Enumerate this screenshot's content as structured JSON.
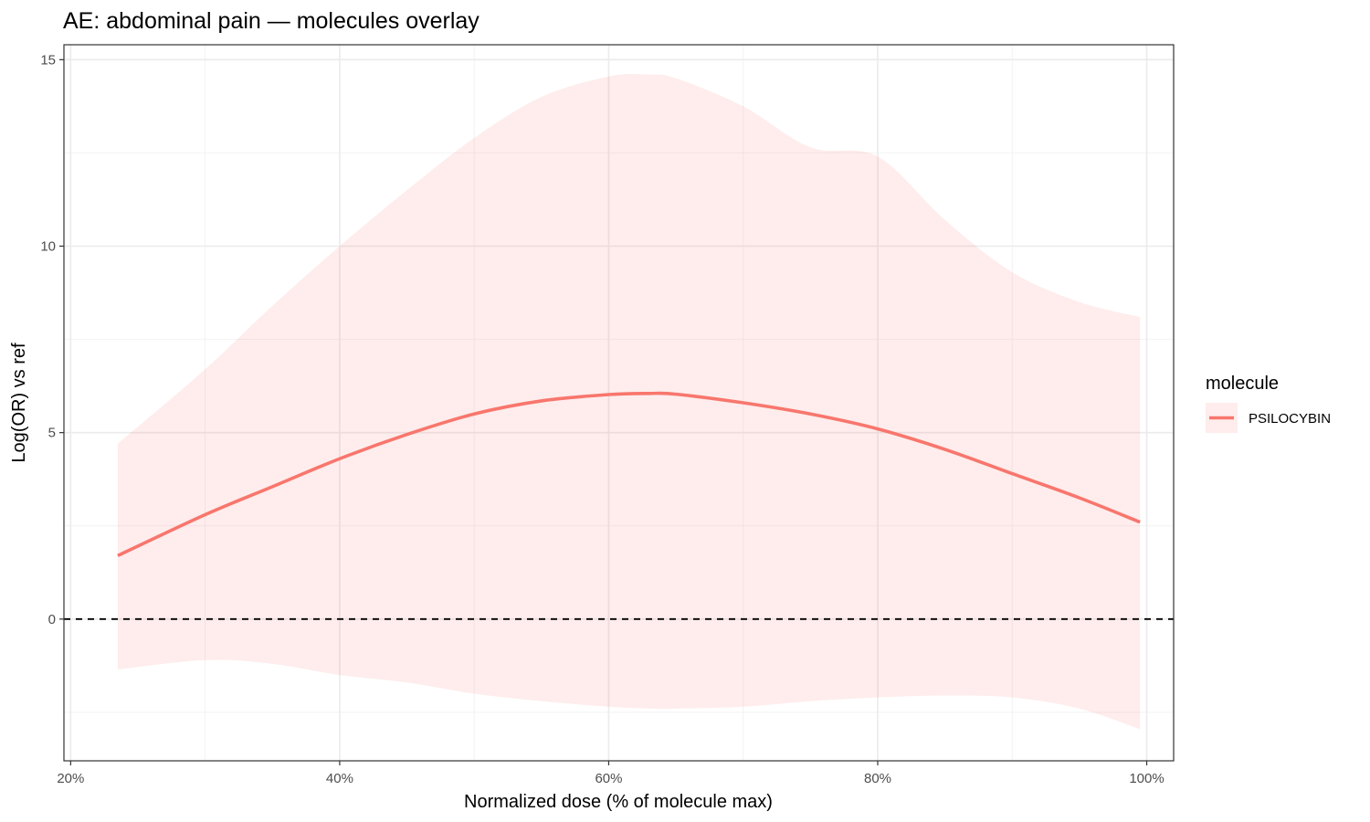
{
  "chart_data": {
    "type": "line",
    "title": "AE: abdominal pain — molecules overlay",
    "xlabel": "Normalized dose (% of molecule max)",
    "ylabel": "Log(OR) vs ref",
    "xlim": [
      19.5,
      102
    ],
    "ylim": [
      -3.8,
      15.4
    ],
    "x_ticks": [
      20,
      40,
      60,
      80,
      100
    ],
    "x_tick_labels": [
      "20%",
      "40%",
      "60%",
      "80%",
      "100%"
    ],
    "y_ticks": [
      0,
      5,
      10,
      15
    ],
    "y_tick_labels": [
      "0",
      "5",
      "10",
      "15"
    ],
    "grid": true,
    "reference_line": {
      "y": 0,
      "style": "dashed",
      "color": "#000000"
    },
    "legend": {
      "title": "molecule",
      "position": "right"
    },
    "series": [
      {
        "name": "PSILOCYBIN",
        "color": "#F8766D",
        "ribbon_color": "#F8766D",
        "ribbon_opacity": 0.13,
        "x": [
          23.5,
          30,
          35,
          40,
          45,
          50,
          55,
          60,
          63,
          65,
          70,
          75,
          80,
          85,
          90,
          95,
          99.5
        ],
        "y": [
          1.7,
          2.8,
          3.55,
          4.3,
          4.95,
          5.5,
          5.85,
          6.02,
          6.05,
          6.03,
          5.8,
          5.5,
          5.1,
          4.55,
          3.9,
          3.25,
          2.6
        ],
        "lower": [
          -1.35,
          -1.1,
          -1.2,
          -1.5,
          -1.7,
          -2.0,
          -2.2,
          -2.35,
          -2.4,
          -2.4,
          -2.35,
          -2.2,
          -2.1,
          -2.05,
          -2.1,
          -2.4,
          -2.95
        ],
        "upper": [
          4.7,
          6.7,
          8.4,
          10.0,
          11.5,
          12.9,
          14.0,
          14.55,
          14.6,
          14.5,
          13.75,
          12.65,
          12.4,
          10.7,
          9.3,
          8.5,
          8.1
        ]
      }
    ]
  }
}
